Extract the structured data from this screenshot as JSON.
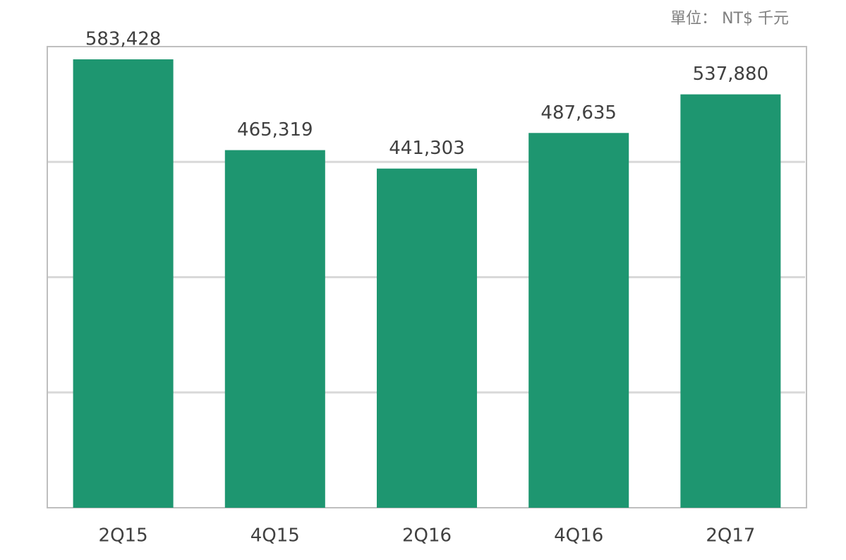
{
  "chart_data": {
    "type": "bar",
    "unit_note": "單位： NT$ 千元",
    "categories": [
      "2Q15",
      "4Q15",
      "2Q16",
      "4Q16",
      "2Q17"
    ],
    "values": [
      583428,
      465319,
      441303,
      487635,
      537880
    ],
    "value_labels": [
      "583,428",
      "465,319",
      "441,303",
      "487,635",
      "537,880"
    ],
    "color": "#1e9670",
    "ylim": [
      0,
      600000
    ],
    "yticks": [
      150000,
      300000,
      450000
    ],
    "grid": true
  }
}
